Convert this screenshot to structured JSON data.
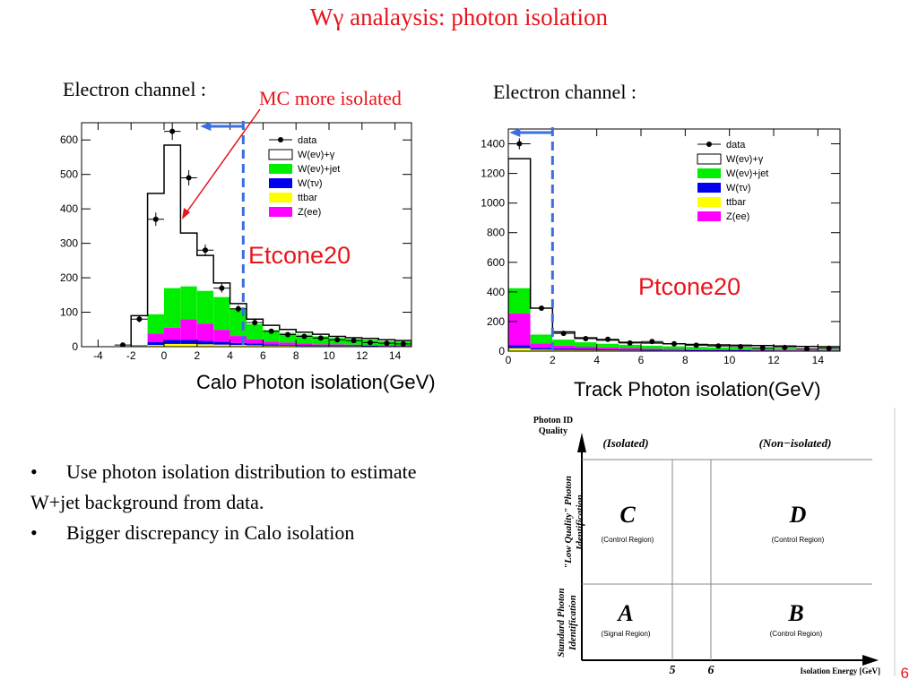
{
  "slide": {
    "title": "Wγ analaysis: photon isolation",
    "page_number": "6",
    "mc_note": "MC more isolated",
    "bullets": [
      "Use photon isolation distribution to estimate W+jet background from data.",
      "Bigger discrepancy in Calo isolation"
    ],
    "bullet_line1": "Use photon isolation distribution to estimate",
    "bullet_line1b": "W+jet background from data.",
    "bullet_line2": "Bigger discrepancy in Calo isolation"
  },
  "colors": {
    "title": "#e8141c",
    "wjet": "#00ee00",
    "wtau": "#0000ee",
    "ttbar": "#ffff00",
    "zee": "#ff00ff",
    "cut_line": "#3a6fe0"
  },
  "chart_data": [
    {
      "type": "bar",
      "channel_label": "Electron channel :",
      "callout": "Etcone20",
      "xlabel": "Calo Photon isolation(GeV)",
      "xlim": [
        -5,
        15
      ],
      "ylim": [
        0,
        650
      ],
      "xticks": [
        -4,
        -2,
        0,
        2,
        4,
        6,
        8,
        10,
        12,
        14
      ],
      "yticks": [
        0,
        100,
        200,
        300,
        400,
        500,
        600
      ],
      "cut_x": 4.8,
      "bin_edges": [
        -2,
        -1,
        0,
        1,
        2,
        3,
        4,
        5,
        6,
        7,
        8,
        9,
        10,
        11,
        12,
        13,
        14,
        15
      ],
      "legend": [
        "data",
        "W(eν)+γ",
        "W(eν)+jet",
        "W(τν)",
        "ttbar",
        "Z(ee)"
      ],
      "stack": {
        "ttbar": [
          0,
          5,
          8,
          8,
          7,
          6,
          5,
          4,
          3,
          3,
          2,
          2,
          2,
          2,
          1,
          1,
          1
        ],
        "wtau": [
          0,
          8,
          12,
          12,
          10,
          8,
          6,
          5,
          4,
          3,
          3,
          2,
          2,
          2,
          2,
          1,
          1
        ],
        "zee": [
          2,
          25,
          35,
          60,
          50,
          35,
          20,
          12,
          8,
          6,
          4,
          3,
          3,
          2,
          2,
          2,
          2
        ],
        "wjet": [
          3,
          56,
          115,
          95,
          95,
          95,
          80,
          44,
          33,
          28,
          26,
          23,
          18,
          16,
          15,
          12,
          11
        ],
        "total": [
          90,
          445,
          585,
          330,
          265,
          185,
          125,
          80,
          62,
          50,
          42,
          36,
          30,
          26,
          24,
          20,
          18
        ]
      },
      "data_points": {
        "x": [
          -2.5,
          -1.5,
          -0.5,
          0.5,
          1.5,
          2.5,
          3.5,
          4.5,
          5.5,
          6.5,
          7.5,
          8.5,
          9.5,
          10.5,
          11.5,
          12.5,
          13.5,
          14.5
        ],
        "y": [
          5,
          80,
          370,
          625,
          490,
          280,
          170,
          110,
          70,
          45,
          35,
          30,
          25,
          20,
          18,
          12,
          10,
          8
        ]
      }
    },
    {
      "type": "bar",
      "channel_label": "Electron channel :",
      "callout": "Ptcone20",
      "xlabel": "Track Photon isolation(GeV)",
      "xlim": [
        0,
        15
      ],
      "ylim": [
        0,
        1500
      ],
      "xticks": [
        0,
        2,
        4,
        6,
        8,
        10,
        12,
        14
      ],
      "yticks": [
        0,
        200,
        400,
        600,
        800,
        1000,
        1200,
        1400
      ],
      "cut_x": 2,
      "bin_edges": [
        0,
        1,
        2,
        3,
        4,
        5,
        6,
        7,
        8,
        9,
        10,
        11,
        12,
        13,
        14,
        15
      ],
      "legend": [
        "data",
        "W(eν)+γ",
        "W(eν)+jet",
        "W(τν)",
        "ttbar",
        "Z(ee)"
      ],
      "stack": {
        "ttbar": [
          20,
          10,
          8,
          7,
          6,
          5,
          4,
          4,
          3,
          3,
          3,
          2,
          2,
          2,
          2
        ],
        "wtau": [
          20,
          12,
          10,
          8,
          7,
          6,
          5,
          4,
          4,
          3,
          3,
          3,
          2,
          2,
          2
        ],
        "zee": [
          215,
          30,
          20,
          15,
          12,
          10,
          8,
          7,
          6,
          5,
          5,
          4,
          4,
          3,
          3
        ],
        "wjet": [
          170,
          60,
          40,
          30,
          25,
          22,
          20,
          18,
          16,
          14,
          12,
          11,
          10,
          9,
          8
        ],
        "total": [
          1300,
          290,
          130,
          90,
          75,
          60,
          55,
          50,
          45,
          42,
          40,
          38,
          35,
          32,
          30
        ]
      },
      "data_points": {
        "x": [
          0.5,
          1.5,
          2.5,
          3.5,
          4.5,
          5.5,
          6.5,
          7.5,
          8.5,
          9.5,
          10.5,
          11.5,
          12.5,
          13.5,
          14.5
        ],
        "y": [
          1400,
          290,
          120,
          85,
          80,
          55,
          65,
          50,
          40,
          35,
          30,
          22,
          25,
          15,
          20
        ]
      }
    }
  ],
  "abcd_diagram": {
    "y_title": "Photon ID Quality",
    "x_title": "Isolation Energy [GeV]",
    "col_headers": [
      "(Isolated)",
      "(Non−isolated)"
    ],
    "row_labels": [
      "\"Low Quality\" Photon Identification",
      "Standard Photon Identification"
    ],
    "x_values": [
      "5",
      "6"
    ],
    "regions": [
      {
        "letter": "C",
        "desc": "(Control Region)"
      },
      {
        "letter": "D",
        "desc": "(Control Region)"
      },
      {
        "letter": "A",
        "desc": "(Signal Region)"
      },
      {
        "letter": "B",
        "desc": "(Control Region)"
      }
    ]
  }
}
